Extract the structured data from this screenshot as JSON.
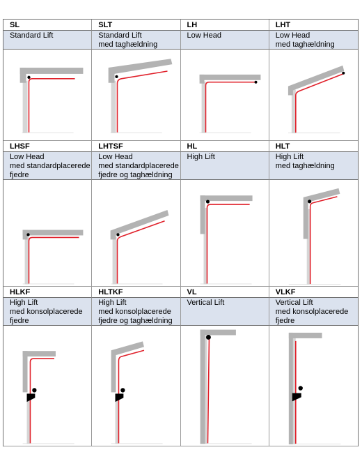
{
  "rows": [
    {
      "cells": [
        {
          "code": "SL",
          "desc": [
            "Standard Lift"
          ],
          "icon": "standard-lift-diagram"
        },
        {
          "code": "SLT",
          "desc": [
            "Standard Lift",
            "med taghældning"
          ],
          "icon": "standard-lift-sloped-diagram"
        },
        {
          "code": "LH",
          "desc": [
            "Low Head"
          ],
          "icon": "low-head-diagram"
        },
        {
          "code": "LHT",
          "desc": [
            "Low Head",
            "med taghældning"
          ],
          "icon": "low-head-sloped-diagram"
        }
      ]
    },
    {
      "cells": [
        {
          "code": "LHSF",
          "desc": [
            "Low Head",
            "med standardplacerede",
            "fjedre"
          ],
          "icon": "low-head-standard-springs-diagram"
        },
        {
          "code": "LHTSF",
          "desc": [
            "Low Head",
            "med standardplacerede",
            "fjedre og taghældning"
          ],
          "icon": "low-head-standard-springs-sloped-diagram"
        },
        {
          "code": "HL",
          "desc": [
            "High Lift"
          ],
          "icon": "high-lift-diagram"
        },
        {
          "code": "HLT",
          "desc": [
            "High Lift",
            "med taghældning"
          ],
          "icon": "high-lift-sloped-diagram"
        }
      ]
    },
    {
      "cells": [
        {
          "code": "HLKF",
          "desc": [
            "High Lift",
            "med konsolplacerede",
            "fjedre"
          ],
          "icon": "high-lift-bracket-springs-diagram"
        },
        {
          "code": "HLTKF",
          "desc": [
            "High Lift",
            "med konsolplacerede",
            "fjedre og taghældning"
          ],
          "icon": "high-lift-bracket-springs-sloped-diagram"
        },
        {
          "code": "VL",
          "desc": [
            "Vertical Lift"
          ],
          "icon": "vertical-lift-diagram"
        },
        {
          "code": "VLKF",
          "desc": [
            "Vertical Lift",
            "med konsolplacerede",
            "fjedre"
          ],
          "icon": "vertical-lift-bracket-springs-diagram"
        }
      ]
    }
  ],
  "colors": {
    "header_bg": "#dbe2ee",
    "rail": "#e0202a",
    "ceiling": "#b3b3b3",
    "post": "#d9d9d9"
  }
}
